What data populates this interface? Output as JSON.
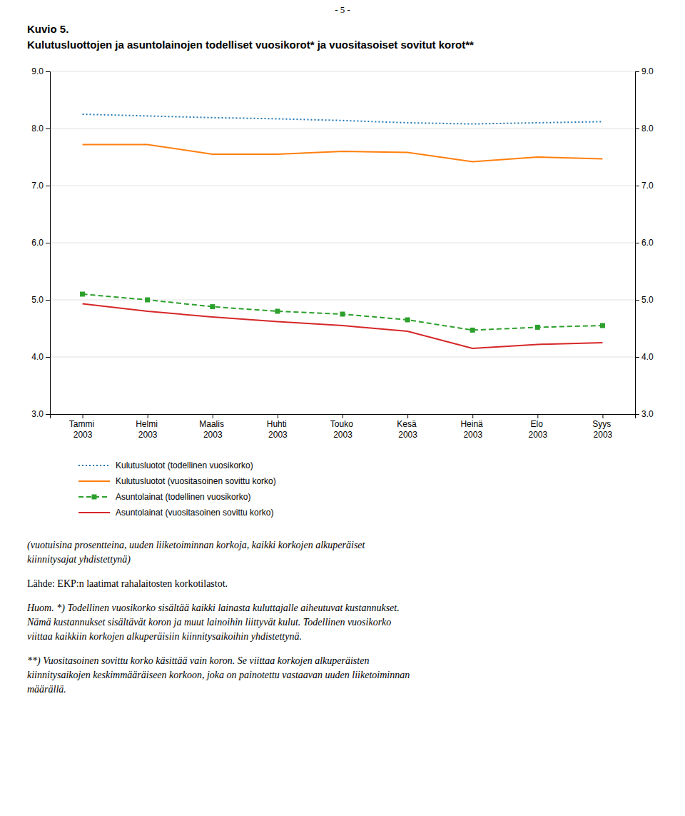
{
  "chart_data": {
    "type": "line",
    "title": "Kulutusluottojen ja asuntolainojen todelliset vuosikorot* ja vuositasoiset sovitut korot**",
    "annotations": [
      [
        "- 5 -"
      ],
      [
        "Kuvio 5."
      ],
      [
        "(vuotuisina prosentteina, uuden liiketoiminnan korkoja, kaikki korkojen alkuperäiset",
        "kiinnitysajat yhdistettynä)"
      ],
      [
        "Lähde: EKP:n laatimat rahalaitosten korkotilastot."
      ],
      [
        "Huom. *) Todellinen vuosikorko sisältää kaikki lainasta kuluttajalle aiheutuvat kustannukset.",
        "Nämä kustannukset sisältävät koron ja muut lainoihin liittyvät kulut. Todellinen vuosikorko",
        "viittaa kaikkiin korkojen alkuperäisiin kiinnitysaikoihin yhdistettynä."
      ],
      [
        "**) Vuositasoinen sovittu korko käsittää vain koron. Se viittaa korkojen alkuperäisten",
        "kiinnitysaikojen keskimmääräiseen korkoon, joka on painotettu vastaavan uuden liiketoiminnan",
        "määrällä."
      ]
    ],
    "categories": [
      "Tammi 2003",
      "Helmi 2003",
      "Maalis 2003",
      "Huhti 2003",
      "Touko 2003",
      "Kesä 2003",
      "Heinä 2003",
      "Elo 2003",
      "Syys 2003"
    ],
    "series": [
      {
        "name": "Kulutusluotot (todellinen vuosikorko)",
        "values": [
          8.25,
          8.22,
          8.19,
          8.17,
          8.14,
          8.1,
          8.08,
          8.1,
          8.12
        ],
        "line_style": "dotted"
      },
      {
        "name": "Kulutusluotot (vuositasoinen sovittu korko)",
        "values": [
          7.72,
          7.72,
          7.55,
          7.55,
          7.6,
          7.58,
          7.42,
          7.5,
          7.47
        ],
        "line_style": "solid"
      },
      {
        "name": "Asuntolainat (todellinen vuosikorko)",
        "values": [
          5.1,
          5.0,
          4.88,
          4.8,
          4.75,
          4.65,
          4.47,
          4.52,
          4.55
        ],
        "line_style": "dashed",
        "marker": "square"
      },
      {
        "name": "Asuntolainat (vuositasoinen sovittu korko)",
        "values": [
          4.93,
          4.8,
          4.7,
          4.62,
          4.55,
          4.45,
          4.15,
          4.22,
          4.25
        ],
        "line_style": "solid"
      }
    ],
    "ylim": [
      3.0,
      9.0
    ],
    "yticks": [
      {
        "value": 3.0,
        "label": "3.0"
      },
      {
        "value": 4.0,
        "label": "4.0"
      },
      {
        "value": 5.0,
        "label": "5.0"
      },
      {
        "value": 6.0,
        "label": "6.0"
      },
      {
        "value": 7.0,
        "label": "7.0"
      },
      {
        "value": 8.0,
        "label": "8.0"
      },
      {
        "value": 9.0,
        "label": "9.0"
      }
    ],
    "y2lim": [
      3.0,
      9.0
    ],
    "y2ticks": [
      {
        "value": 3.0,
        "label": "3.0"
      },
      {
        "value": 4.0,
        "label": "4.0"
      },
      {
        "value": 5.0,
        "label": "5.0"
      },
      {
        "value": 6.0,
        "label": "6.0"
      },
      {
        "value": 7.0,
        "label": "7.0"
      },
      {
        "value": 8.0,
        "label": "8.0"
      },
      {
        "value": 9.0,
        "label": "9.0"
      }
    ],
    "grid": true,
    "legend": "bottom"
  }
}
